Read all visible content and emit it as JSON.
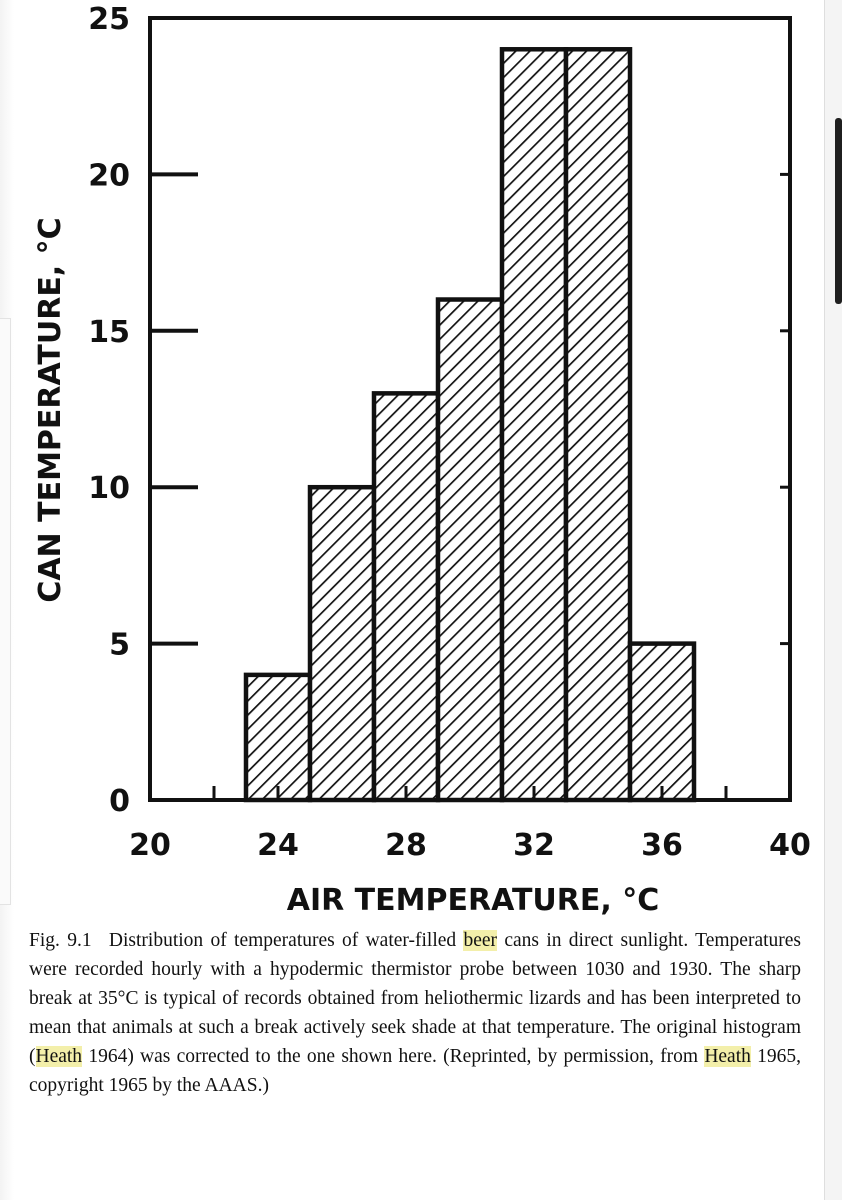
{
  "chart_data": {
    "type": "bar",
    "xlabel": "AIR TEMPERATURE, °C",
    "ylabel": "CAN TEMPERATURE, °C",
    "xlim": [
      20,
      40
    ],
    "ylim": [
      0,
      25
    ],
    "x_ticks": [
      "20",
      "24",
      "28",
      "32",
      "36",
      "40"
    ],
    "y_ticks": [
      "0",
      "5",
      "10",
      "15",
      "20",
      "25"
    ],
    "bins": [
      {
        "x0": 23,
        "x1": 25,
        "value": 4
      },
      {
        "x0": 25,
        "x1": 27,
        "value": 10
      },
      {
        "x0": 27,
        "x1": 29,
        "value": 13
      },
      {
        "x0": 29,
        "x1": 31,
        "value": 16
      },
      {
        "x0": 31,
        "x1": 33,
        "value": 24
      },
      {
        "x0": 33,
        "x1": 35,
        "value": 24
      },
      {
        "x0": 35,
        "x1": 37,
        "value": 5
      }
    ],
    "fill": "diagonal-hatch",
    "grid": false
  },
  "caption": {
    "fig_number": "Fig. 9.1",
    "text_before_beer": "Distribution of temperatures of water-filled ",
    "beer": "beer",
    "text_after_beer": " cans in direct sunlight. Temperatures were recorded hourly with a hypodermic thermistor probe between 1030 and 1930. The sharp break at 35°C is typical of records obtained from heliothermic lizards and has been interpreted to mean that animals at such a break actively seek shade at that temperature. The original histogram (",
    "heath_1": "Heath",
    "text_mid": " 1964) was corrected to the one shown here. (Reprinted, by permission, from ",
    "heath_2": "Heath",
    "text_end": " 1965, copyright 1965 by the AAAS.)"
  },
  "colors": {
    "ink": "#111111",
    "highlight": "#f3efaa"
  }
}
